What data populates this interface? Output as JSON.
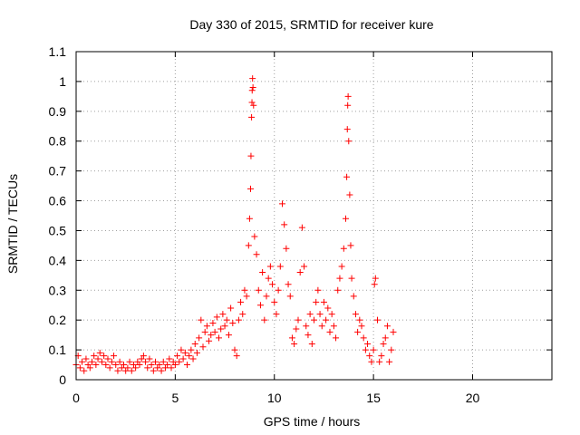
{
  "chart_data": {
    "type": "scatter",
    "title": "Day 330 of 2015, SRMTID for receiver kure",
    "xlabel": "GPS time / hours",
    "ylabel": "SRMTID / TECUs",
    "xlim": [
      0,
      24
    ],
    "ylim": [
      0,
      1.1
    ],
    "x_ticks": [
      0,
      5,
      10,
      15,
      20
    ],
    "x_tick_labels": [
      "0",
      "5",
      "10",
      "15",
      "20"
    ],
    "y_ticks": [
      0,
      0.1,
      0.2,
      0.3,
      0.4,
      0.5,
      0.6,
      0.7,
      0.8,
      0.9,
      1,
      1.1
    ],
    "y_tick_labels": [
      "0",
      "0.1",
      "0.2",
      "0.3",
      "0.4",
      "0.5",
      "0.6",
      "0.7",
      "0.8",
      "0.9",
      "1",
      "1.1"
    ],
    "grid": true,
    "marker": "+",
    "series": [
      {
        "name": "SRMTID",
        "color": "#ff0000",
        "points": [
          [
            0.0,
            0.05
          ],
          [
            0.1,
            0.08
          ],
          [
            0.2,
            0.04
          ],
          [
            0.3,
            0.06
          ],
          [
            0.4,
            0.03
          ],
          [
            0.5,
            0.07
          ],
          [
            0.6,
            0.05
          ],
          [
            0.7,
            0.04
          ],
          [
            0.8,
            0.06
          ],
          [
            0.9,
            0.08
          ],
          [
            1.0,
            0.05
          ],
          [
            1.1,
            0.07
          ],
          [
            1.2,
            0.09
          ],
          [
            1.3,
            0.06
          ],
          [
            1.4,
            0.08
          ],
          [
            1.5,
            0.05
          ],
          [
            1.6,
            0.07
          ],
          [
            1.7,
            0.04
          ],
          [
            1.8,
            0.06
          ],
          [
            1.9,
            0.08
          ],
          [
            2.0,
            0.05
          ],
          [
            2.1,
            0.03
          ],
          [
            2.2,
            0.06
          ],
          [
            2.3,
            0.04
          ],
          [
            2.4,
            0.05
          ],
          [
            2.5,
            0.03
          ],
          [
            2.6,
            0.04
          ],
          [
            2.7,
            0.06
          ],
          [
            2.8,
            0.03
          ],
          [
            2.9,
            0.05
          ],
          [
            3.0,
            0.04
          ],
          [
            3.1,
            0.06
          ],
          [
            3.2,
            0.05
          ],
          [
            3.3,
            0.07
          ],
          [
            3.4,
            0.08
          ],
          [
            3.5,
            0.06
          ],
          [
            3.6,
            0.04
          ],
          [
            3.7,
            0.07
          ],
          [
            3.8,
            0.05
          ],
          [
            3.9,
            0.03
          ],
          [
            4.0,
            0.06
          ],
          [
            4.1,
            0.04
          ],
          [
            4.2,
            0.05
          ],
          [
            4.3,
            0.03
          ],
          [
            4.4,
            0.06
          ],
          [
            4.5,
            0.04
          ],
          [
            4.6,
            0.05
          ],
          [
            4.7,
            0.07
          ],
          [
            4.8,
            0.04
          ],
          [
            4.9,
            0.06
          ],
          [
            5.0,
            0.05
          ],
          [
            5.1,
            0.08
          ],
          [
            5.2,
            0.06
          ],
          [
            5.3,
            0.1
          ],
          [
            5.4,
            0.07
          ],
          [
            5.5,
            0.09
          ],
          [
            5.6,
            0.05
          ],
          [
            5.7,
            0.08
          ],
          [
            5.8,
            0.1
          ],
          [
            5.9,
            0.07
          ],
          [
            6.0,
            0.12
          ],
          [
            6.1,
            0.09
          ],
          [
            6.2,
            0.14
          ],
          [
            6.3,
            0.2
          ],
          [
            6.4,
            0.11
          ],
          [
            6.5,
            0.16
          ],
          [
            6.6,
            0.18
          ],
          [
            6.7,
            0.13
          ],
          [
            6.8,
            0.15
          ],
          [
            6.9,
            0.19
          ],
          [
            7.0,
            0.16
          ],
          [
            7.1,
            0.21
          ],
          [
            7.2,
            0.14
          ],
          [
            7.3,
            0.17
          ],
          [
            7.4,
            0.22
          ],
          [
            7.5,
            0.18
          ],
          [
            7.6,
            0.2
          ],
          [
            7.7,
            0.15
          ],
          [
            7.8,
            0.24
          ],
          [
            7.9,
            0.19
          ],
          [
            8.0,
            0.1
          ],
          [
            8.1,
            0.08
          ],
          [
            8.2,
            0.2
          ],
          [
            8.3,
            0.26
          ],
          [
            8.4,
            0.22
          ],
          [
            8.5,
            0.3
          ],
          [
            8.6,
            0.28
          ],
          [
            8.7,
            0.45
          ],
          [
            8.75,
            0.54
          ],
          [
            8.8,
            0.64
          ],
          [
            8.82,
            0.75
          ],
          [
            8.85,
            0.88
          ],
          [
            8.87,
            0.93
          ],
          [
            8.88,
            0.97
          ],
          [
            8.9,
            1.01
          ],
          [
            8.92,
            0.98
          ],
          [
            8.95,
            0.92
          ],
          [
            9.0,
            0.48
          ],
          [
            9.1,
            0.42
          ],
          [
            9.2,
            0.3
          ],
          [
            9.3,
            0.25
          ],
          [
            9.4,
            0.36
          ],
          [
            9.5,
            0.2
          ],
          [
            9.6,
            0.28
          ],
          [
            9.7,
            0.34
          ],
          [
            9.8,
            0.38
          ],
          [
            9.9,
            0.32
          ],
          [
            10.0,
            0.26
          ],
          [
            10.1,
            0.22
          ],
          [
            10.2,
            0.3
          ],
          [
            10.3,
            0.38
          ],
          [
            10.4,
            0.59
          ],
          [
            10.5,
            0.52
          ],
          [
            10.6,
            0.44
          ],
          [
            10.7,
            0.32
          ],
          [
            10.8,
            0.28
          ],
          [
            10.9,
            0.14
          ],
          [
            11.0,
            0.12
          ],
          [
            11.1,
            0.17
          ],
          [
            11.2,
            0.2
          ],
          [
            11.3,
            0.36
          ],
          [
            11.4,
            0.51
          ],
          [
            11.5,
            0.38
          ],
          [
            11.6,
            0.18
          ],
          [
            11.7,
            0.15
          ],
          [
            11.8,
            0.22
          ],
          [
            11.9,
            0.12
          ],
          [
            12.0,
            0.2
          ],
          [
            12.1,
            0.26
          ],
          [
            12.2,
            0.3
          ],
          [
            12.3,
            0.22
          ],
          [
            12.4,
            0.18
          ],
          [
            12.5,
            0.26
          ],
          [
            12.6,
            0.2
          ],
          [
            12.7,
            0.24
          ],
          [
            12.8,
            0.16
          ],
          [
            12.9,
            0.22
          ],
          [
            13.0,
            0.18
          ],
          [
            13.1,
            0.14
          ],
          [
            13.2,
            0.3
          ],
          [
            13.3,
            0.34
          ],
          [
            13.4,
            0.38
          ],
          [
            13.5,
            0.44
          ],
          [
            13.6,
            0.54
          ],
          [
            13.65,
            0.68
          ],
          [
            13.68,
            0.84
          ],
          [
            13.7,
            0.92
          ],
          [
            13.72,
            0.95
          ],
          [
            13.75,
            0.8
          ],
          [
            13.8,
            0.62
          ],
          [
            13.85,
            0.45
          ],
          [
            13.9,
            0.34
          ],
          [
            14.0,
            0.28
          ],
          [
            14.1,
            0.22
          ],
          [
            14.2,
            0.16
          ],
          [
            14.3,
            0.2
          ],
          [
            14.4,
            0.18
          ],
          [
            14.5,
            0.14
          ],
          [
            14.6,
            0.1
          ],
          [
            14.7,
            0.12
          ],
          [
            14.8,
            0.08
          ],
          [
            14.9,
            0.06
          ],
          [
            15.0,
            0.1
          ],
          [
            15.05,
            0.32
          ],
          [
            15.1,
            0.34
          ],
          [
            15.2,
            0.2
          ],
          [
            15.3,
            0.06
          ],
          [
            15.4,
            0.08
          ],
          [
            15.5,
            0.12
          ],
          [
            15.6,
            0.14
          ],
          [
            15.7,
            0.18
          ],
          [
            15.8,
            0.06
          ],
          [
            15.9,
            0.1
          ],
          [
            16.0,
            0.16
          ]
        ]
      }
    ]
  }
}
